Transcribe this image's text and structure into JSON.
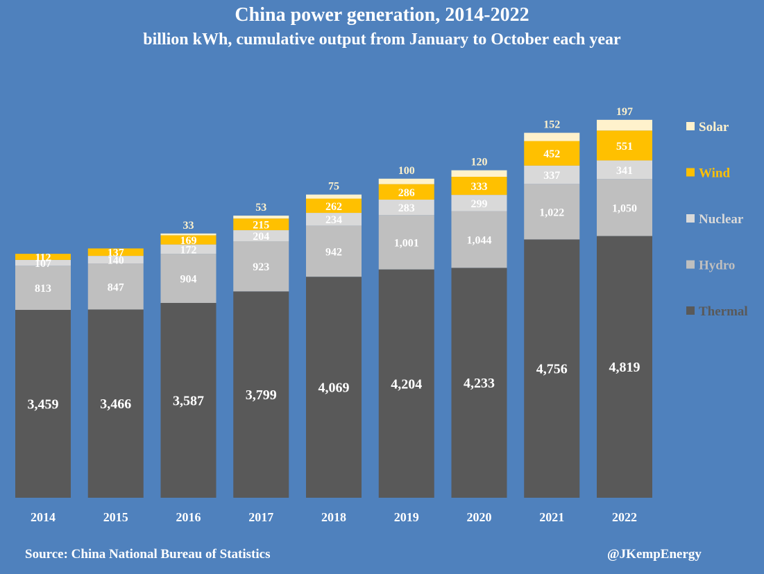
{
  "chart_data": {
    "type": "bar",
    "stacked": true,
    "title": "China power generation, 2014-2022",
    "subtitle": "billion kWh, cumulative output from January to October each year",
    "categories": [
      "2014",
      "2015",
      "2016",
      "2017",
      "2018",
      "2019",
      "2020",
      "2021",
      "2022"
    ],
    "series": [
      {
        "name": "Thermal",
        "color": "#595959",
        "label_color": "#ffffff",
        "values": [
          3459,
          3466,
          3587,
          3799,
          4069,
          4204,
          4233,
          4756,
          4819
        ]
      },
      {
        "name": "Hydro",
        "color": "#bfbfbf",
        "label_color": "#ffffff",
        "values": [
          813,
          847,
          904,
          923,
          942,
          1001,
          1044,
          1022,
          1050
        ]
      },
      {
        "name": "Nuclear",
        "color": "#d9d9d9",
        "label_color": "#ffffff",
        "values": [
          107,
          140,
          172,
          204,
          234,
          283,
          299,
          337,
          341
        ]
      },
      {
        "name": "Wind",
        "color": "#ffc000",
        "label_color": "#ffffff",
        "values": [
          112,
          137,
          169,
          215,
          262,
          286,
          333,
          452,
          551
        ]
      },
      {
        "name": "Solar",
        "color": "#fff2cc",
        "label_color": "#fff2cc",
        "values": [
          null,
          null,
          33,
          53,
          75,
          100,
          120,
          152,
          197
        ]
      }
    ],
    "legend_position": "right",
    "grid": false
  },
  "footer": {
    "source": "Source: China National Bureau of Statistics",
    "handle": "@JKempEnergy"
  },
  "legend_label_colors": {
    "Solar": "#fff2cc",
    "Wind": "#ffc000",
    "Nuclear": "#d9d9d9",
    "Hydro": "#bfbfbf",
    "Thermal": "#595959"
  }
}
